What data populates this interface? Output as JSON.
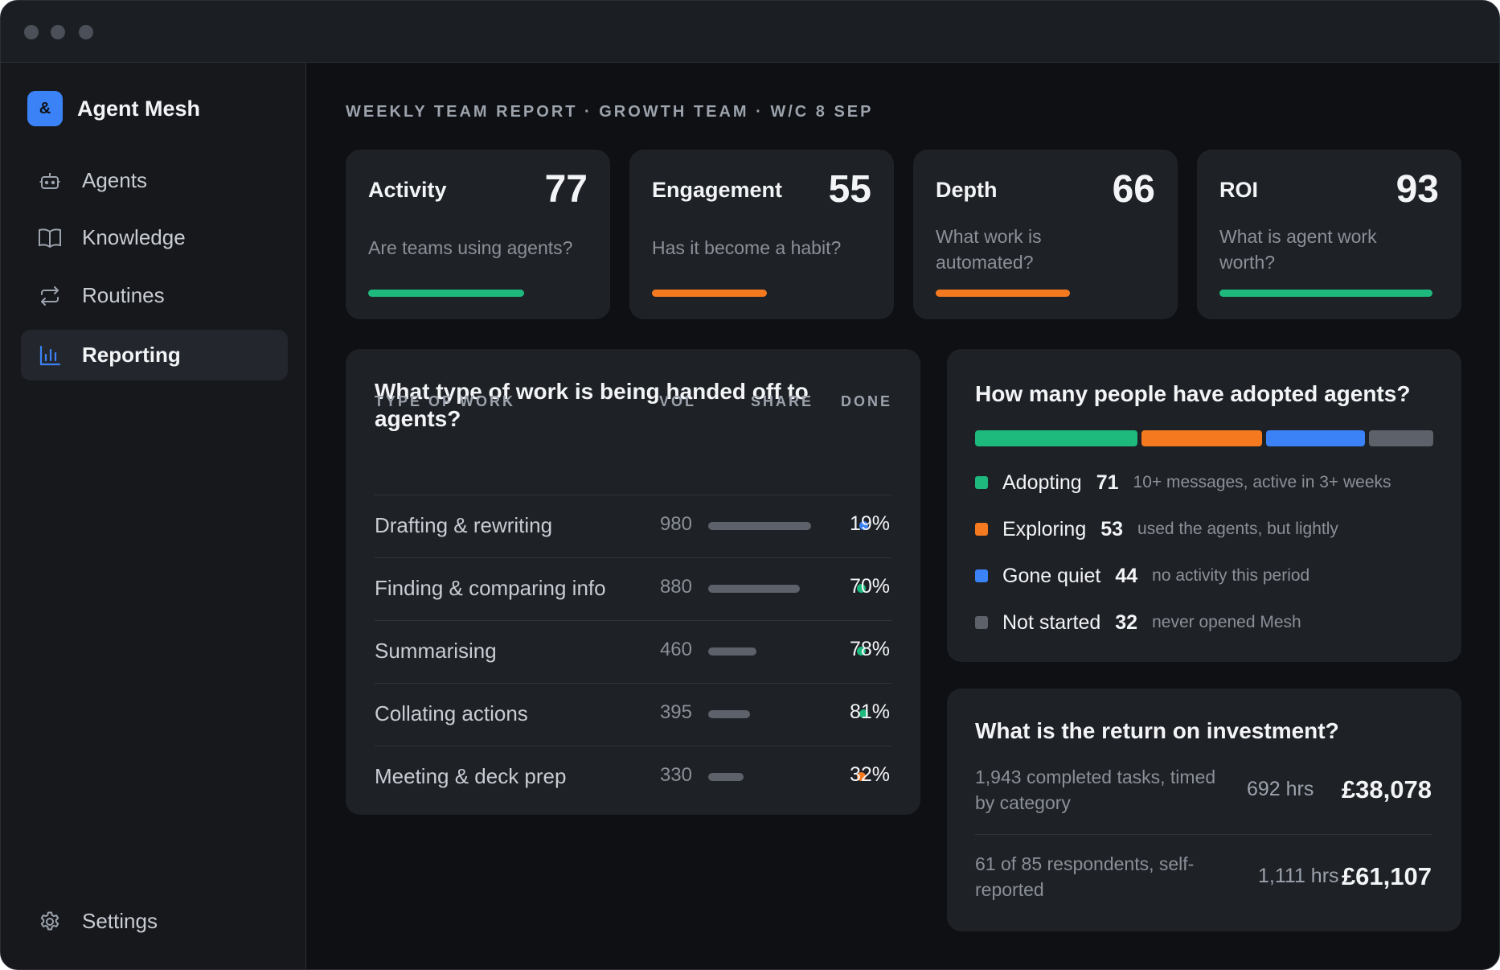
{
  "app": {
    "name": "Agent Mesh",
    "logo_glyph": "&"
  },
  "nav": {
    "items": [
      {
        "label": "Agents",
        "icon": "robot-icon"
      },
      {
        "label": "Knowledge",
        "icon": "book-icon"
      },
      {
        "label": "Routines",
        "icon": "repeat-icon"
      },
      {
        "label": "Reporting",
        "icon": "bar-chart-icon",
        "active": true
      }
    ],
    "settings": {
      "label": "Settings",
      "icon": "gear-icon"
    }
  },
  "report": {
    "title": "WEEKLY TEAM REPORT · GROWTH TEAM · W/C 8 SEP"
  },
  "kpis": [
    {
      "name": "Activity",
      "score": "77",
      "question": "Are teams using agents?",
      "color": "#1db97d"
    },
    {
      "name": "Engagement",
      "score": "55",
      "question": "Has it become a habit?",
      "color": "#f57a1f"
    },
    {
      "name": "Depth",
      "score": "66",
      "question": "What work is automated?",
      "color": "#f57a1f"
    },
    {
      "name": "ROI",
      "score": "93",
      "question": "What is agent work worth?",
      "color": "#1db97d"
    }
  ],
  "work": {
    "title": "What type of work is being handed off to agents?",
    "headers": {
      "type": "TYPE OF WORK",
      "vol": "VOL",
      "share": "SHARE",
      "done": "DONE"
    },
    "rows": [
      {
        "label": "Drafting & rewriting",
        "vol": "980",
        "done": "19%",
        "dot_color": "#3b82f6"
      },
      {
        "label": "Finding & comparing info",
        "vol": "880",
        "done": "70%",
        "dot_color": "#1db97d"
      },
      {
        "label": "Summarising",
        "vol": "460",
        "done": "78%",
        "dot_color": "#1db97d"
      },
      {
        "label": "Collating actions",
        "vol": "395",
        "done": "81%",
        "dot_color": "#1db97d"
      },
      {
        "label": "Meeting & deck prep",
        "vol": "330",
        "done": "32%",
        "dot_color": "#f57a1f"
      }
    ]
  },
  "adoption": {
    "title": "How many people have adopted agents?",
    "segments": [
      {
        "name": "Adopting",
        "count": "71",
        "desc": "10+ messages, active in 3+ weeks",
        "color": "#1db97d"
      },
      {
        "name": "Exploring",
        "count": "53",
        "desc": "used the agents, but lightly",
        "color": "#f57a1f"
      },
      {
        "name": "Gone quiet",
        "count": "44",
        "desc": "no activity this period",
        "color": "#3b82f6"
      },
      {
        "name": "Not started",
        "count": "32",
        "desc": "never opened Mesh",
        "color": "#5d6169"
      }
    ]
  },
  "roi": {
    "title": "What is the return on investment?",
    "rows": [
      {
        "desc": "1,943 completed tasks, timed by category",
        "hours": "692 hrs",
        "amount": "£38,078"
      },
      {
        "desc": "61 of 85 respondents, self-reported",
        "hours": "1,111 hrs",
        "amount": "£61,107"
      }
    ]
  }
}
